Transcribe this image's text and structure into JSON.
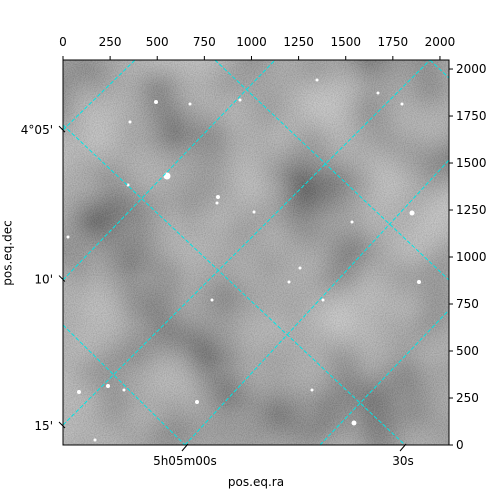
{
  "chart_data": {
    "type": "image",
    "x_label": "pos.eq.ra",
    "y_label": "pos.eq.dec",
    "xlim": [
      0,
      2048
    ],
    "ylim": [
      0,
      2048
    ],
    "xticks": [
      0,
      250,
      500,
      750,
      1000,
      1250,
      1500,
      1750,
      2000
    ],
    "yticks": [
      0,
      250,
      500,
      750,
      1000,
      1250,
      1500,
      1750,
      2000
    ],
    "ra_ticks": [
      {
        "value": 647,
        "label": "5h05m00s"
      },
      {
        "value": 1804,
        "label": "30s"
      }
    ],
    "dec_ticks": [
      {
        "value": 1675,
        "label": "4°05'"
      },
      {
        "value": 880,
        "label": "10'"
      },
      {
        "value": 101,
        "label": "15'"
      }
    ],
    "grid_color": "#00e5e5"
  }
}
